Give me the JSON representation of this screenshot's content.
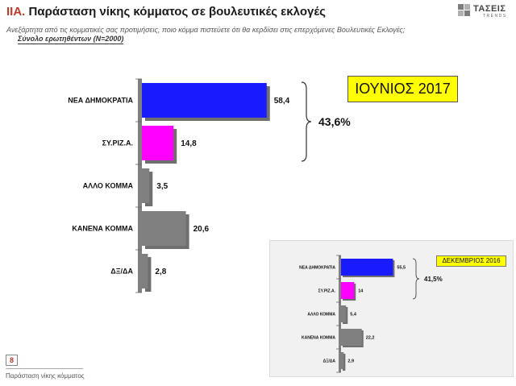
{
  "header": {
    "section": "ΙΙΑ.",
    "title": "Παράσταση νίκης κόμματος σε βουλευτικές εκλογές",
    "subtitle": "Ανεξάρτητα από τις κομματικές σας προτιμήσεις, ποιο κόμμα πιστεύετε ότι θα κερδίσει στις επερχόμενες Βουλευτικές Εκλογές;",
    "base": "Σύνολο ερωτηθέντων (Ν=2000)"
  },
  "logo": {
    "name": "ΤΑΣΕΙΣ",
    "sub": "TRENDS"
  },
  "main": {
    "period": "ΙΟΥΝΙΟΣ 2017",
    "bracket_total": "43,6%"
  },
  "inset": {
    "period": "ΔΕΚΕΜΒΡΙΟΣ 2016",
    "bracket_total": "41,5%"
  },
  "colors": {
    "nd": "#1a1aff",
    "syriza": "#ff00ff",
    "other": "#808080",
    "axis": "#808080"
  },
  "chart_data": [
    {
      "type": "bar",
      "orientation": "horizontal",
      "title": "ΙΟΥΝΙΟΣ 2017",
      "categories": [
        "ΝΕΑ ΔΗΜΟΚΡΑΤΙΑ",
        "ΣΥ.ΡΙΖ.Α.",
        "ΑΛΛΟ ΚΟΜΜΑ",
        "ΚΑΝΕΝΑ ΚΟΜΜΑ",
        "ΔΞ/ΔΑ"
      ],
      "values": [
        58.4,
        14.8,
        3.5,
        20.6,
        2.8
      ],
      "labels": [
        "58,4",
        "14,8",
        "3,5",
        "20,6",
        "2,8"
      ],
      "bar_colors": [
        "#1a1aff",
        "#ff00ff",
        "#808080",
        "#808080",
        "#808080"
      ],
      "annotation": "43,6%"
    },
    {
      "type": "bar",
      "orientation": "horizontal",
      "title": "ΔΕΚΕΜΒΡΙΟΣ 2016",
      "categories": [
        "ΝΕΑ ΔΗΜΟΚΡΑΤΙΑ",
        "ΣΥ.ΡΙΖ.Α.",
        "ΑΛΛΟ ΚΟΜΜΑ",
        "ΚΑΝΕΝΑ ΚΟΜΜΑ",
        "ΔΞ/ΔΑ"
      ],
      "values": [
        55.5,
        14,
        5.4,
        22.2,
        2.9
      ],
      "labels": [
        "55,5",
        "14",
        "5,4",
        "22,2",
        "2,9"
      ],
      "bar_colors": [
        "#1a1aff",
        "#ff00ff",
        "#808080",
        "#808080",
        "#808080"
      ],
      "annotation": "41,5%"
    }
  ],
  "footer": {
    "page": "8",
    "caption": "Παράσταση νίκης κόμματος"
  }
}
